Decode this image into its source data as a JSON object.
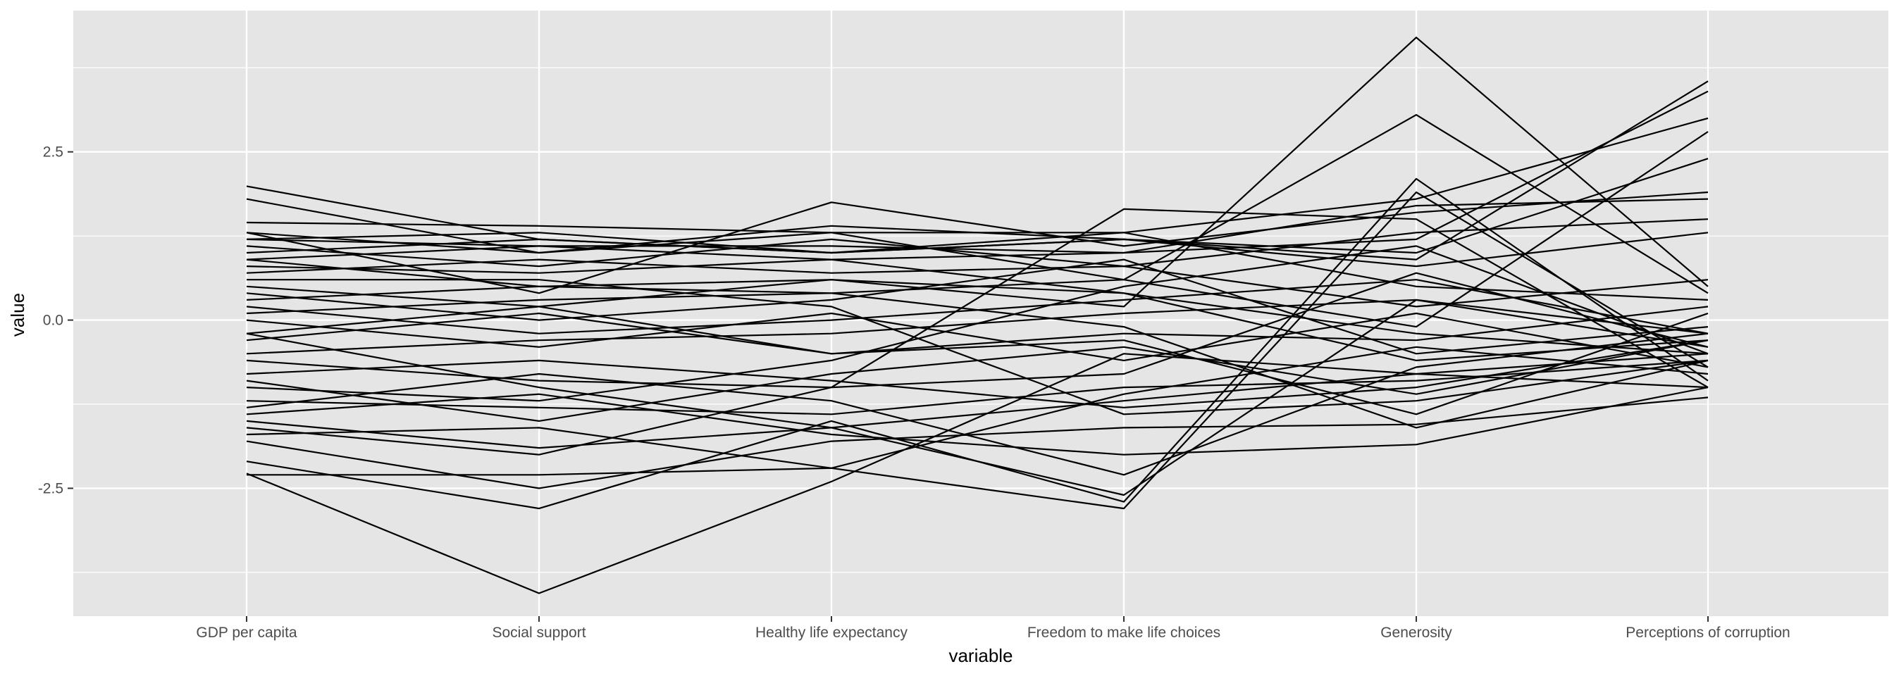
{
  "chart_data": {
    "type": "line",
    "subtype": "parallel-coordinates",
    "title": "",
    "xlabel": "variable",
    "ylabel": "value",
    "categories": [
      "GDP per capita",
      "Social support",
      "Healthy life expectancy",
      "Freedom to make life choices",
      "Generosity",
      "Perceptions of corruption"
    ],
    "ylim": [
      -4.4,
      4.6
    ],
    "yticks": [
      -2.5,
      0.0,
      2.5
    ],
    "ytick_labels": [
      "-2.5",
      "0.0",
      "2.5"
    ],
    "grid": true,
    "legend": "none",
    "line_color": "#000000",
    "panel_background": "#e5e5e5",
    "grid_color": "#ffffff",
    "series": [
      {
        "values": [
          -2.28,
          -4.06,
          -2.4,
          -0.5,
          -0.8,
          -0.5
        ]
      },
      {
        "values": [
          -0.2,
          0.2,
          0.6,
          0.2,
          4.2,
          0.5
        ]
      },
      {
        "values": [
          0.1,
          0.3,
          0.4,
          0.6,
          3.05,
          0.4
        ]
      },
      {
        "values": [
          1.2,
          1.3,
          1.0,
          1.2,
          0.9,
          3.55
        ]
      },
      {
        "values": [
          0.9,
          1.1,
          0.9,
          1.0,
          1.2,
          3.4
        ]
      },
      {
        "values": [
          -2.1,
          -2.8,
          -1.5,
          -2.7,
          2.1,
          -0.9
        ]
      },
      {
        "values": [
          1.99,
          1.2,
          1.0,
          1.3,
          1.8,
          3.0
        ]
      },
      {
        "values": [
          1.8,
          1.0,
          1.3,
          0.6,
          -0.1,
          2.8
        ]
      },
      {
        "values": [
          1.3,
          0.4,
          1.75,
          1.1,
          1.6,
          1.9
        ]
      },
      {
        "values": [
          -1.6,
          -2.0,
          -1.0,
          1.65,
          1.5,
          -1.0
        ]
      },
      {
        "values": [
          -1.4,
          -1.1,
          -1.7,
          -2.0,
          -1.85,
          -1.0
        ]
      },
      {
        "values": [
          -2.3,
          -2.3,
          -2.2,
          -2.8,
          1.9,
          -0.7
        ]
      },
      {
        "values": [
          -0.2,
          -1.0,
          -1.6,
          -2.6,
          0.3,
          -0.4
        ]
      },
      {
        "values": [
          -1.8,
          -2.5,
          -1.8,
          -1.6,
          -1.55,
          -1.15
        ]
      },
      {
        "values": [
          0.5,
          0.2,
          -0.5,
          -0.3,
          -1.4,
          0.1
        ]
      },
      {
        "values": [
          -0.9,
          -1.5,
          -0.8,
          -0.4,
          -1.1,
          -0.3
        ]
      },
      {
        "values": [
          1.0,
          1.2,
          1.0,
          1.2,
          1.0,
          2.4
        ]
      },
      {
        "values": [
          1.2,
          1.1,
          1.1,
          1.0,
          1.7,
          1.8
        ]
      },
      {
        "values": [
          0.7,
          0.9,
          0.7,
          0.8,
          1.3,
          1.5
        ]
      },
      {
        "values": [
          0.3,
          0.5,
          0.6,
          0.4,
          -0.2,
          -0.5
        ]
      },
      {
        "values": [
          -0.5,
          -0.3,
          -0.2,
          0.1,
          0.3,
          -0.2
        ]
      },
      {
        "values": [
          -1.2,
          -1.3,
          -1.4,
          -1.0,
          -0.9,
          -0.6
        ]
      },
      {
        "values": [
          -1.5,
          -1.9,
          -1.6,
          -1.2,
          -0.8,
          -1.0
        ]
      },
      {
        "values": [
          1.45,
          1.4,
          1.3,
          1.3,
          0.5,
          0.3
        ]
      },
      {
        "values": [
          0.4,
          0.0,
          0.3,
          0.9,
          -0.5,
          -0.1
        ]
      },
      {
        "values": [
          0.0,
          -0.4,
          0.1,
          -0.6,
          0.1,
          -0.7
        ]
      },
      {
        "values": [
          -0.6,
          -0.9,
          -1.0,
          -0.8,
          0.7,
          -0.4
        ]
      },
      {
        "values": [
          0.8,
          0.7,
          0.9,
          0.4,
          -0.6,
          -0.3
        ]
      },
      {
        "values": [
          -1.0,
          -1.2,
          -0.6,
          0.5,
          1.1,
          -0.5
        ]
      },
      {
        "values": [
          0.6,
          0.6,
          0.2,
          -1.4,
          -1.2,
          -0.6
        ]
      },
      {
        "values": [
          -0.3,
          0.1,
          -0.5,
          -0.2,
          -0.3,
          0.2
        ]
      },
      {
        "values": [
          1.1,
          0.8,
          1.2,
          0.8,
          0.2,
          0.6
        ]
      },
      {
        "values": [
          -1.7,
          -1.6,
          -2.2,
          -1.1,
          -0.4,
          -0.8
        ]
      },
      {
        "values": [
          0.2,
          -0.2,
          0.0,
          0.3,
          0.6,
          -0.2
        ]
      },
      {
        "values": [
          -0.8,
          -0.6,
          -0.9,
          -1.3,
          -1.0,
          -0.3
        ]
      },
      {
        "values": [
          1.3,
          1.0,
          1.4,
          1.2,
          0.8,
          1.3
        ]
      },
      {
        "values": [
          0.9,
          0.5,
          0.4,
          -0.1,
          -1.6,
          -0.6
        ]
      },
      {
        "values": [
          -1.3,
          -0.8,
          -1.2,
          -2.3,
          -0.7,
          -0.2
        ]
      }
    ]
  }
}
